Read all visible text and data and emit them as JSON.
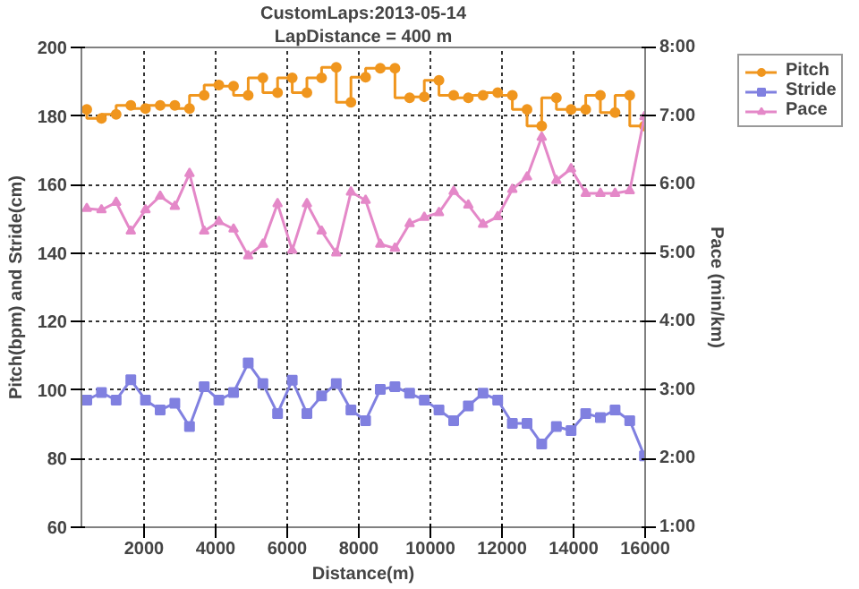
{
  "chart_data": {
    "type": "line",
    "title": "CustomLaps:2013-05-14",
    "subtitle": "LapDistance = 400 m",
    "xlabel": "Distance(m)",
    "ylabel": "Pitch(bpm) and Stride(cm)",
    "y2label": "Pace (min/km)",
    "x": [
      400,
      810,
      1220,
      1630,
      2040,
      2450,
      2860,
      3270,
      3680,
      4090,
      4500,
      4910,
      5320,
      5730,
      6140,
      6550,
      6960,
      7370,
      7780,
      8190,
      8600,
      9010,
      9420,
      9830,
      10240,
      10650,
      11060,
      11470,
      11880,
      12290,
      12700,
      13110,
      13520,
      13930,
      14340,
      14750,
      15160,
      15570,
      15980
    ],
    "series": [
      {
        "name": "Pitch",
        "type": "step",
        "marker": "circle",
        "color": "#f0961e",
        "values": [
          181.9,
          179.3,
          180.5,
          183.1,
          182.2,
          183.1,
          183.1,
          182.2,
          186,
          189,
          188.7,
          186,
          191.1,
          186.8,
          191.1,
          186.8,
          191.1,
          194.2,
          184,
          191.3,
          193.9,
          193.9,
          185.3,
          185.6,
          190.4,
          186,
          185.3,
          186,
          186.8,
          186,
          181.9,
          177.1,
          185.3,
          181.9,
          181.9,
          186,
          181,
          186,
          177.1
        ]
      },
      {
        "name": "Stride",
        "type": "line",
        "marker": "square",
        "color": "#8080e0",
        "values": [
          97.1,
          99.3,
          97.1,
          103,
          97.1,
          94.2,
          96.2,
          89.4,
          101,
          97.1,
          99.3,
          107.9,
          101.9,
          93.2,
          102.9,
          93.2,
          98.3,
          101.9,
          94.2,
          91.1,
          100.2,
          101,
          99.1,
          97.1,
          94.2,
          91.1,
          95.4,
          99.1,
          97.1,
          90.3,
          90.3,
          84.3,
          89.4,
          88.2,
          93.2,
          92,
          94.2,
          91.1,
          80.8
        ]
      },
      {
        "name": "Pace",
        "type": "line",
        "marker": "triangle",
        "axis": "y2",
        "color": "#e488c8",
        "values": [
          5.65,
          5.63,
          5.74,
          5.32,
          5.63,
          5.83,
          5.68,
          6.16,
          5.32,
          5.46,
          5.35,
          4.96,
          5.13,
          5.72,
          5.04,
          5.72,
          5.32,
          5.0,
          5.89,
          5.77,
          5.13,
          5.07,
          5.43,
          5.52,
          5.59,
          5.9,
          5.7,
          5.42,
          5.53,
          5.93,
          6.11,
          6.69,
          6.06,
          6.23,
          5.87,
          5.87,
          5.87,
          5.91,
          6.99
        ]
      }
    ],
    "xlim": [
      250,
      16000
    ],
    "xticks": [
      2000,
      4000,
      6000,
      8000,
      10000,
      12000,
      14000,
      16000
    ],
    "ylim": [
      60,
      200
    ],
    "yticks": [
      60,
      80,
      100,
      120,
      140,
      160,
      180,
      200
    ],
    "y2lim": [
      1,
      8
    ],
    "y2ticks": [
      {
        "value": 1,
        "label": "1:00"
      },
      {
        "value": 2,
        "label": "2:00"
      },
      {
        "value": 3,
        "label": "3:00"
      },
      {
        "value": 4,
        "label": "4:00"
      },
      {
        "value": 5,
        "label": "5:00"
      },
      {
        "value": 6,
        "label": "6:00"
      },
      {
        "value": 7,
        "label": "7:00"
      },
      {
        "value": 8,
        "label": "8:00"
      }
    ],
    "grid": true,
    "legend": "right",
    "line_style": "solid"
  }
}
